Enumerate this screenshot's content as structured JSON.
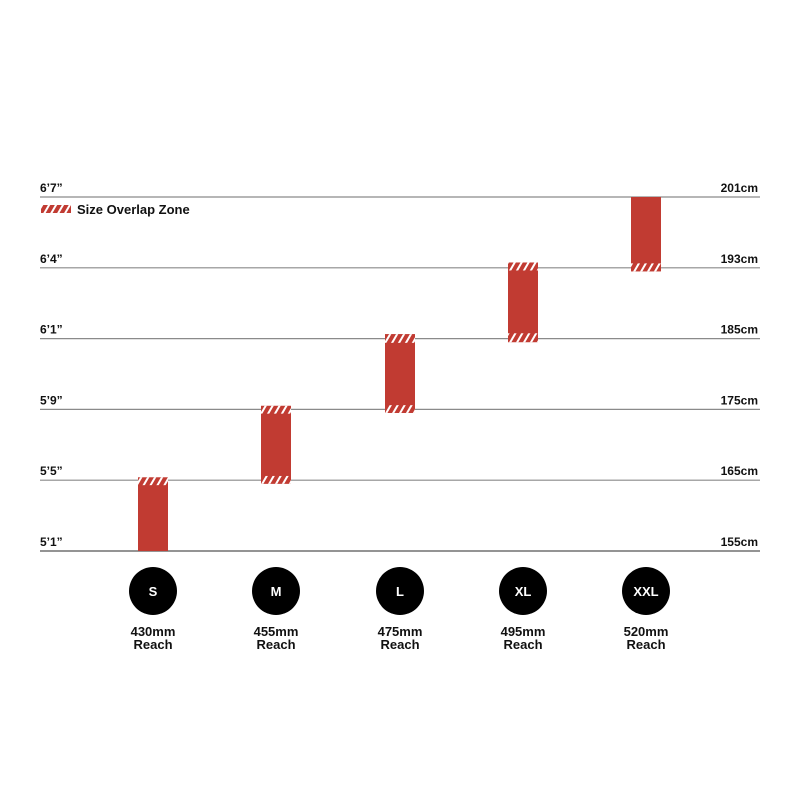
{
  "chart_data": {
    "type": "bar",
    "subtype": "floating-range",
    "legend": {
      "label": "Size Overlap Zone",
      "placement": "top-left",
      "style": "hatched"
    },
    "y_ticks_left": [
      "5’1”",
      "5’5”",
      "5’9”",
      "6’1”",
      "6’4”",
      "6’7”"
    ],
    "y_ticks_right": [
      "155cm",
      "165cm",
      "175cm",
      "185cm",
      "193cm",
      "201cm"
    ],
    "y_tick_values_cm": [
      155,
      165,
      175,
      185,
      193,
      201
    ],
    "ylim_cm": [
      155,
      201
    ],
    "grid": true,
    "bar_color": "#c13b32",
    "bars": [
      {
        "size": "S",
        "reach": "430mm",
        "reach_label": "Reach",
        "min_cm": 155,
        "max_cm": 165.4,
        "overlap_bottom": null,
        "overlap_top": [
          164.3,
          165.4
        ]
      },
      {
        "size": "M",
        "reach": "455mm",
        "reach_label": "Reach",
        "min_cm": 164.5,
        "max_cm": 175.5,
        "overlap_bottom": [
          164.5,
          165.6
        ],
        "overlap_top": [
          174.4,
          175.5
        ]
      },
      {
        "size": "L",
        "reach": "475mm",
        "reach_label": "Reach",
        "min_cm": 174.5,
        "max_cm": 185.5,
        "overlap_bottom": [
          174.5,
          175.6
        ],
        "overlap_top": [
          184.4,
          185.5
        ]
      },
      {
        "size": "XL",
        "reach": "495mm",
        "reach_label": "Reach",
        "min_cm": 184.5,
        "max_cm": 193.6,
        "overlap_bottom": [
          184.5,
          185.6
        ],
        "overlap_top": [
          192.7,
          193.6
        ]
      },
      {
        "size": "XXL",
        "reach": "520mm",
        "reach_label": "Reach",
        "min_cm": 192.6,
        "max_cm": 201,
        "overlap_bottom": [
          192.6,
          193.5
        ],
        "overlap_top": null
      }
    ]
  }
}
